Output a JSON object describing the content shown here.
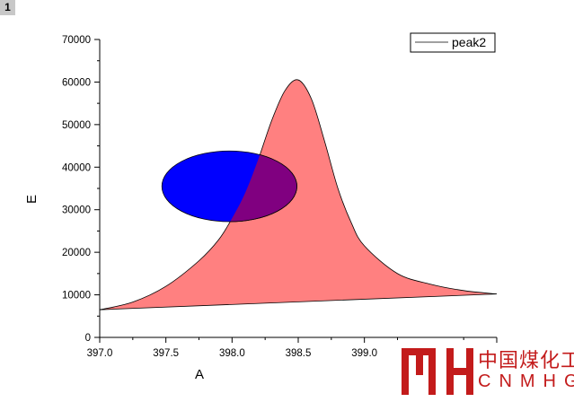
{
  "layer_badge": "1",
  "chart_data": {
    "type": "area",
    "title": "",
    "xlabel": "A",
    "ylabel": "E",
    "xlim": [
      397.0,
      400.0
    ],
    "ylim": [
      0,
      70000
    ],
    "xticks": [
      397.0,
      397.5,
      398.0,
      398.5,
      399.0
    ],
    "xtick_labels": [
      "397.0",
      "397.5",
      "398.0",
      "398.5",
      "399.0"
    ],
    "yticks": [
      0,
      10000,
      20000,
      30000,
      40000,
      50000,
      60000,
      70000
    ],
    "ytick_labels": [
      "0",
      "10000",
      "20000",
      "30000",
      "40000",
      "50000",
      "60000",
      "70000"
    ],
    "grid": false,
    "legend": {
      "position": "top-right",
      "entries": [
        "peak2"
      ]
    },
    "series": [
      {
        "name": "peak2",
        "line_color": "#000000",
        "fill_color": "#ff8080",
        "x": [
          397.0,
          397.25,
          397.5,
          397.75,
          397.9,
          398.0,
          398.1,
          398.2,
          398.3,
          398.4,
          398.5,
          398.6,
          398.7,
          398.8,
          398.9,
          399.0,
          399.25,
          399.5,
          399.75,
          400.0
        ],
        "y": [
          6500,
          8300,
          12000,
          18000,
          23000,
          28000,
          34000,
          42000,
          51000,
          58000,
          60500,
          56000,
          46000,
          35000,
          27000,
          21500,
          15000,
          12500,
          11000,
          10200
        ]
      }
    ],
    "baseline": {
      "x": [
        397.0,
        400.0
      ],
      "y": [
        6500,
        10200
      ]
    },
    "ellipse": {
      "fill_color": "#0000ff",
      "center_x": 397.98,
      "center_y": 35500,
      "radius_x": 0.51,
      "radius_y": 8300
    },
    "overlap_color": "#800080"
  },
  "watermark": {
    "logo_name": "mh-logo-icon",
    "text_cn": "中国煤化工",
    "text_en": "CNMHG",
    "color": "#c31b1b"
  }
}
